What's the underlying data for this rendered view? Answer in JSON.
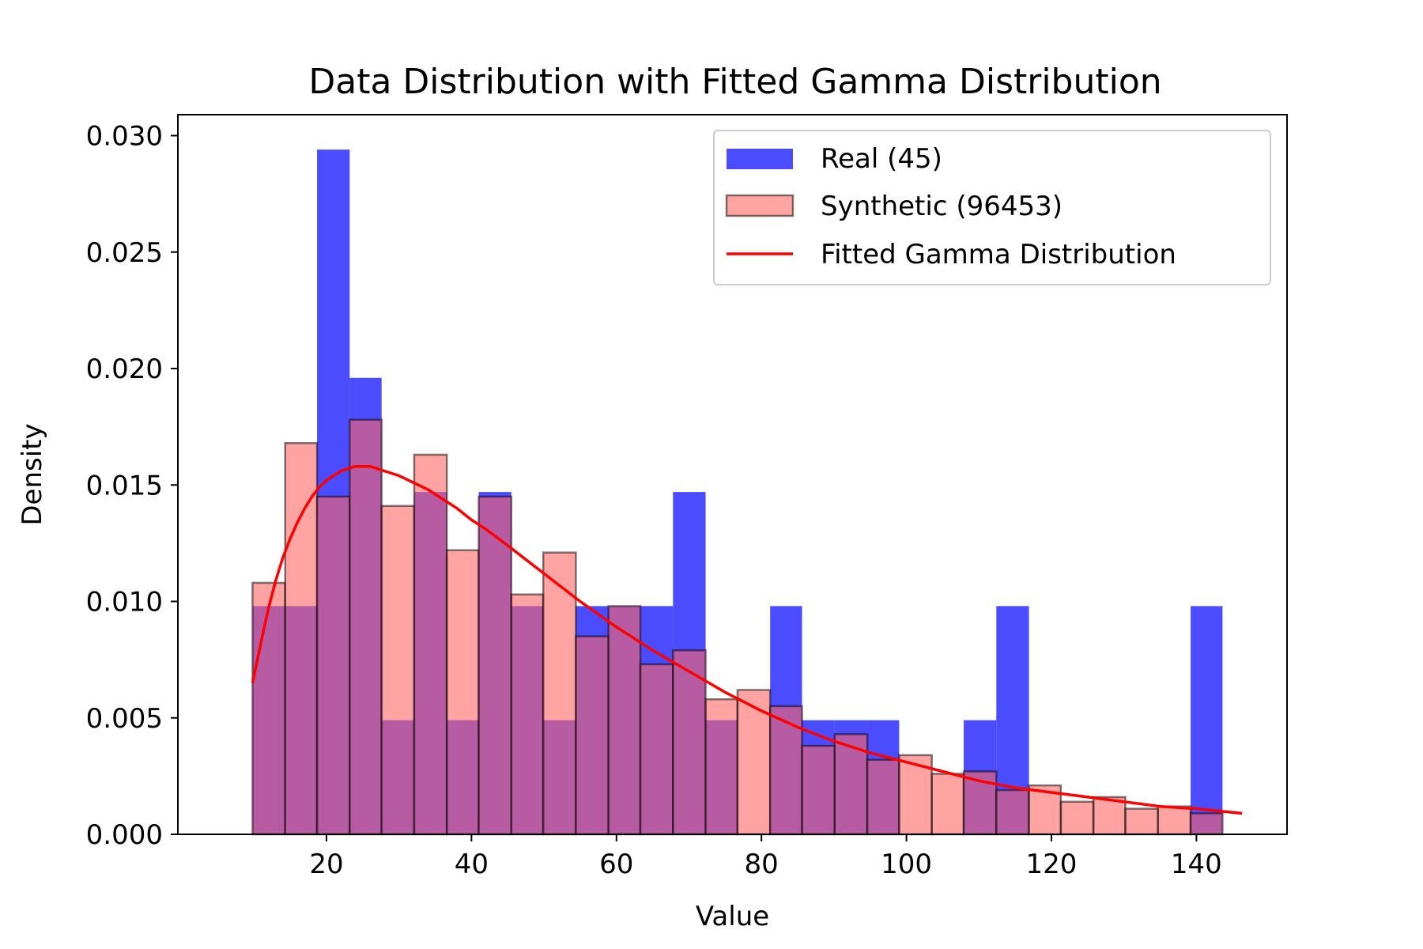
{
  "chart_data": {
    "type": "bar",
    "title": "Data Distribution with Fitted Gamma Distribution",
    "xlabel": "Value",
    "ylabel": "Density",
    "xlim": [
      -0.5,
      152.5
    ],
    "ylim": [
      0,
      0.0309
    ],
    "xticks": [
      20,
      40,
      60,
      80,
      100,
      120,
      140
    ],
    "xtick_labels": [
      "20",
      "40",
      "60",
      "80",
      "100",
      "120",
      "140"
    ],
    "yticks": [
      0,
      0.005,
      0.01,
      0.015,
      0.02,
      0.025,
      0.03
    ],
    "ytick_labels": [
      "0.000",
      "0.005",
      "0.010",
      "0.015",
      "0.020",
      "0.025",
      "0.030"
    ],
    "grid": false,
    "legend": {
      "position": "top-right",
      "entries": [
        "Real (45)",
        "Synthetic (96453)",
        "Fitted Gamma Distribution"
      ]
    },
    "series": [
      {
        "name": "Real (45)",
        "kind": "histogram",
        "color": "#0000ff",
        "opacity": 0.7,
        "bin_edges": [
          9.8,
          14.3,
          18.7,
          23.2,
          27.6,
          32.1,
          36.6,
          41.0,
          45.5,
          49.9,
          54.4,
          58.9,
          63.3,
          67.8,
          72.3,
          76.7,
          81.2,
          85.6,
          90.1,
          94.6,
          99.0,
          103.5,
          107.9,
          112.4,
          116.9,
          121.3,
          125.8,
          130.2,
          134.7,
          139.2,
          143.6
        ],
        "values": [
          0.0098,
          0.0098,
          0.0294,
          0.0196,
          0.0049,
          0.0147,
          0.0049,
          0.0147,
          0.0098,
          0.0049,
          0.0098,
          0.0098,
          0.0098,
          0.0147,
          0.0049,
          0,
          0.0098,
          0.0049,
          0.0049,
          0.0049,
          0,
          0,
          0.0049,
          0.0098,
          0,
          0,
          0,
          0,
          0,
          0.0098
        ]
      },
      {
        "name": "Synthetic (96453)",
        "kind": "histogram",
        "color": "#ff6666",
        "opacity": 0.6,
        "edgecolor": "#000000",
        "bin_edges": [
          9.8,
          14.3,
          18.7,
          23.2,
          27.6,
          32.1,
          36.6,
          41.0,
          45.5,
          49.9,
          54.4,
          58.9,
          63.3,
          67.8,
          72.3,
          76.7,
          81.2,
          85.6,
          90.1,
          94.6,
          99.0,
          103.5,
          107.9,
          112.4,
          116.9,
          121.3,
          125.8,
          130.2,
          134.7,
          139.2,
          143.6
        ],
        "values": [
          0.0108,
          0.0168,
          0.0145,
          0.0178,
          0.0141,
          0.0163,
          0.0122,
          0.0145,
          0.0103,
          0.0121,
          0.0085,
          0.0098,
          0.0073,
          0.0079,
          0.0058,
          0.0062,
          0.0055,
          0.0038,
          0.0043,
          0.0032,
          0.0034,
          0.0026,
          0.0027,
          0.0019,
          0.0021,
          0.0014,
          0.0016,
          0.0011,
          0.0012,
          0.0009
        ]
      },
      {
        "name": "Fitted Gamma Distribution",
        "kind": "line",
        "color": "#ff0000",
        "x": [
          9.8,
          11,
          12,
          13,
          14,
          15,
          16,
          17,
          18,
          19,
          20,
          21,
          22,
          23,
          24,
          25,
          26,
          27,
          28,
          30,
          32,
          34,
          36,
          38,
          40,
          42,
          45,
          50,
          55,
          60,
          65,
          70,
          75,
          80,
          85,
          90,
          95,
          100,
          105,
          110,
          115,
          120,
          125,
          130,
          135,
          140,
          146.3
        ],
        "y": [
          0.0065,
          0.0083,
          0.0097,
          0.0109,
          0.0119,
          0.0127,
          0.0134,
          0.014,
          0.0145,
          0.0149,
          0.0152,
          0.0154,
          0.0156,
          0.0157,
          0.0158,
          0.0158,
          0.0158,
          0.0157,
          0.0156,
          0.0154,
          0.0151,
          0.0148,
          0.0144,
          0.014,
          0.0135,
          0.0131,
          0.0124,
          0.0112,
          0.01,
          0.0089,
          0.0079,
          0.007,
          0.0061,
          0.0053,
          0.0046,
          0.004,
          0.0035,
          0.0031,
          0.0027,
          0.0023,
          0.002,
          0.0018,
          0.0016,
          0.0014,
          0.0012,
          0.0011,
          0.0009
        ]
      }
    ]
  }
}
